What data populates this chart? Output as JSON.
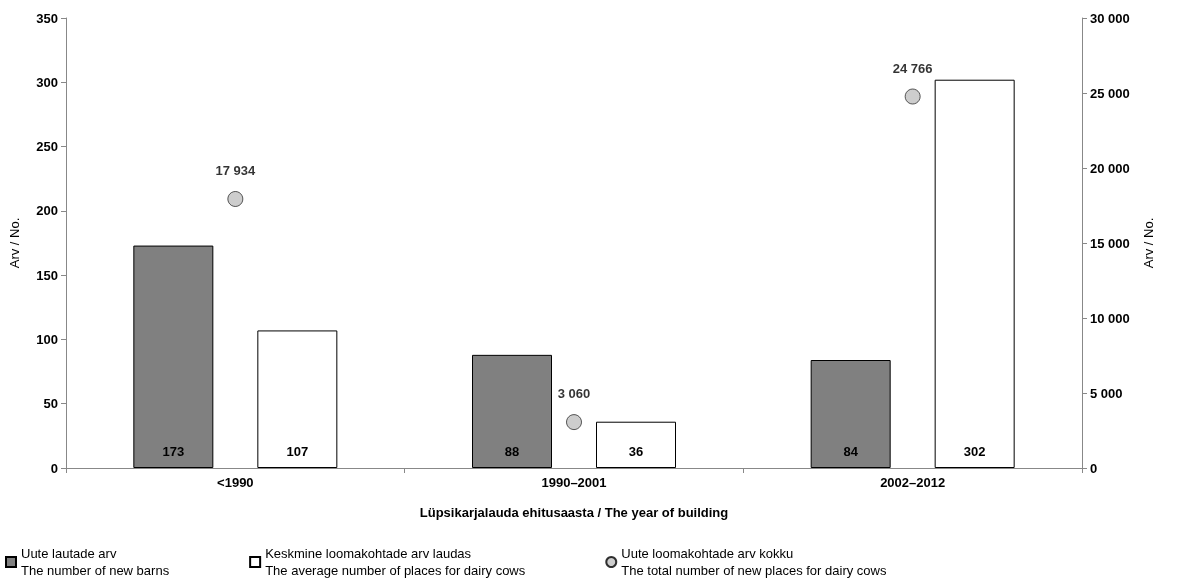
{
  "chart_data": {
    "type": "bar",
    "xlabel": "Lüpsikarjalauda ehitusaasta / The year of building",
    "ylabel": "Arv / No.",
    "y2label": "Arv / No.",
    "categories": [
      "<1990",
      "1990–2001",
      "2002–2012"
    ],
    "series": [
      {
        "name": "Uute lautade arv\nThe number of new barns",
        "color": "#808080",
        "values": [
          173,
          88,
          84
        ],
        "value_labels": [
          "173",
          "88",
          "84"
        ]
      },
      {
        "name": "Keskmine loomakohtade arv laudas\nThe average number of places for dairy cows",
        "color": "#ffffff",
        "values": [
          107,
          36,
          302
        ],
        "value_labels": [
          "107",
          "36",
          "302"
        ]
      },
      {
        "name": "Uute loomakohtade arv kokku\nThe total number of new places for dairy cows",
        "type": "scatter",
        "axis": "y2",
        "color": "#c0c0c0",
        "values": [
          17934,
          3060,
          24766
        ],
        "value_labels": [
          "17 934",
          "3 060",
          "24 766"
        ]
      }
    ],
    "ylim": [
      0,
      350
    ],
    "yticks": [
      0,
      50,
      100,
      150,
      200,
      250,
      300,
      350
    ],
    "y2lim": [
      0,
      30000
    ],
    "y2ticks": [
      0,
      {
        "value": 5000,
        "label": "5 000"
      },
      {
        "value": 10000,
        "label": "10 000"
      },
      {
        "value": 15000,
        "label": "15 000"
      },
      {
        "value": 20000,
        "label": "20 000"
      },
      {
        "value": 25000,
        "label": "25 000"
      },
      {
        "value": 30000,
        "label": "30 000"
      }
    ],
    "marker": "circle",
    "legend": "bottom",
    "grid": false
  }
}
